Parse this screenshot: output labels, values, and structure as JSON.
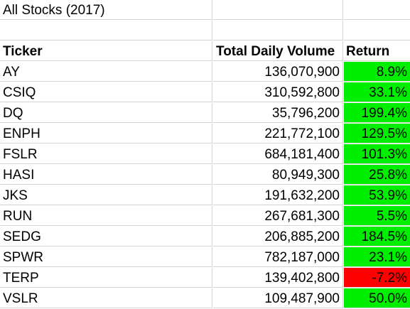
{
  "sheet": {
    "title": "All Stocks (2017)",
    "headers": {
      "ticker": "Ticker",
      "volume": "Total Daily Volume",
      "return": "Return"
    },
    "colors": {
      "positive_fill": "#00ee00",
      "negative_fill": "#ff0000",
      "gridline": "#d4d4d4"
    },
    "rows": [
      {
        "ticker": "AY",
        "volume": "136,070,900",
        "ret": "8.9%",
        "status": "positive"
      },
      {
        "ticker": "CSIQ",
        "volume": "310,592,800",
        "ret": "33.1%",
        "status": "positive"
      },
      {
        "ticker": "DQ",
        "volume": "35,796,200",
        "ret": "199.4%",
        "status": "positive"
      },
      {
        "ticker": "ENPH",
        "volume": "221,772,100",
        "ret": "129.5%",
        "status": "positive"
      },
      {
        "ticker": "FSLR",
        "volume": "684,181,400",
        "ret": "101.3%",
        "status": "positive"
      },
      {
        "ticker": "HASI",
        "volume": "80,949,300",
        "ret": "25.8%",
        "status": "positive"
      },
      {
        "ticker": "JKS",
        "volume": "191,632,200",
        "ret": "53.9%",
        "status": "positive"
      },
      {
        "ticker": "RUN",
        "volume": "267,681,300",
        "ret": "5.5%",
        "status": "positive"
      },
      {
        "ticker": "SEDG",
        "volume": "206,885,200",
        "ret": "184.5%",
        "status": "positive"
      },
      {
        "ticker": "SPWR",
        "volume": "782,187,000",
        "ret": "23.1%",
        "status": "positive"
      },
      {
        "ticker": "TERP",
        "volume": "139,402,800",
        "ret": "-7.2%",
        "status": "negative"
      },
      {
        "ticker": "VSLR",
        "volume": "109,487,900",
        "ret": "50.0%",
        "status": "positive"
      }
    ]
  }
}
